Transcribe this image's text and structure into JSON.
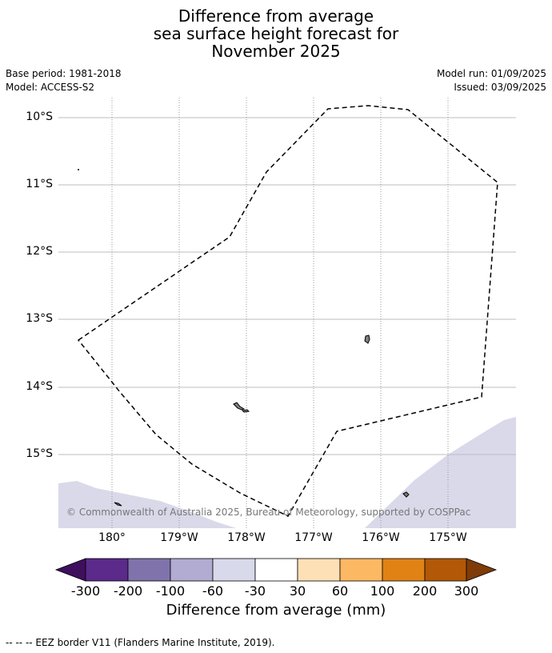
{
  "title": {
    "line1": "Difference from average",
    "line2": "sea surface height forecast for",
    "line3": "November 2025"
  },
  "meta": {
    "base_period": "Base period: 1981-2018",
    "model": "Model: ACCESS-S2",
    "model_run": "Model run: 01/09/2025",
    "issued": "Issued: 03/09/2025"
  },
  "map": {
    "lat_labels": [
      "10°S",
      "11°S",
      "12°S",
      "13°S",
      "14°S",
      "15°S"
    ],
    "lon_labels": [
      "180°",
      "179°W",
      "178°W",
      "177°W",
      "176°W",
      "175°W"
    ],
    "copyright": "© Commonwealth of Australia 2025, Bureau of Meteorology, supported by COSPPac",
    "border_style": "dashed",
    "anomaly_fill_color": "#d9d9ea"
  },
  "colorbar": {
    "title": "Difference from average (mm)",
    "tick_labels": [
      "-300",
      "-200",
      "-100",
      "-60",
      "-30",
      "30",
      "60",
      "100",
      "200",
      "300"
    ],
    "colors": [
      "#3f0f5e",
      "#5b2a8a",
      "#8073ac",
      "#b2abd2",
      "#d8daeb",
      "#ffffff",
      "#fee0b6",
      "#fdb863",
      "#e08214",
      "#b35806",
      "#7f3b08"
    ]
  },
  "footer": {
    "legend": "--  --  -- EEZ border V11 (Flanders Marine Institute, 2019)."
  }
}
